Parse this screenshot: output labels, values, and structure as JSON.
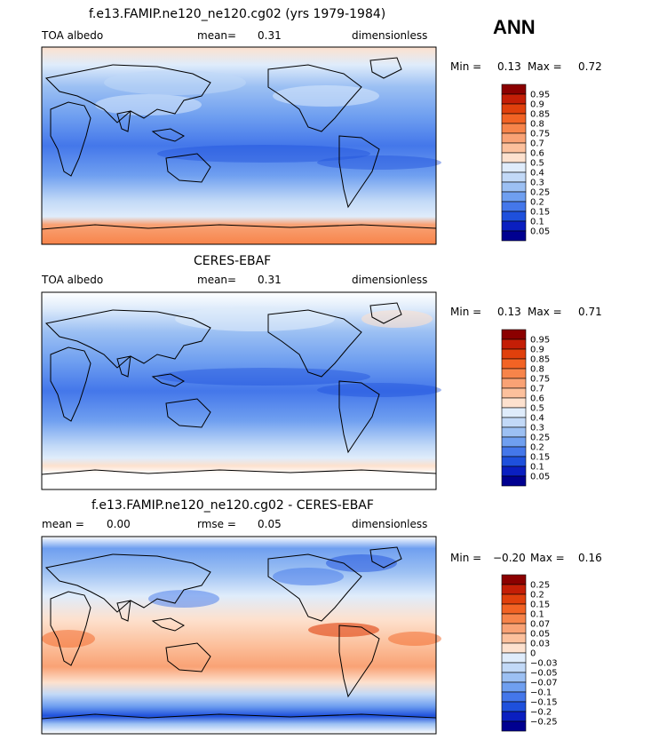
{
  "season": "ANN",
  "panels": [
    {
      "title": "f.e13.FAMIP.ne120_ne120.cg02 (yrs 1979-1984)",
      "left_label": "TOA albedo",
      "mean_label": "mean=",
      "mean_value": "0.31",
      "units": "dimensionless",
      "min_label": "Min =",
      "min_value": "0.13",
      "max_label": "Max =",
      "max_value": "0.72"
    },
    {
      "title": "CERES-EBAF",
      "left_label": "TOA albedo",
      "mean_label": "mean=",
      "mean_value": "0.31",
      "units": "dimensionless",
      "min_label": "Min =",
      "min_value": "0.13",
      "max_label": "Max =",
      "max_value": "0.71"
    },
    {
      "title": "f.e13.FAMIP.ne120_ne120.cg02 - CERES-EBAF",
      "left_label": "mean =",
      "left_value": "0.00",
      "mean_label": "rmse =",
      "mean_value": "0.05",
      "units": "dimensionless",
      "min_label": "Min =",
      "min_value": "−0.20",
      "max_label": "Max =",
      "max_value": "0.16"
    }
  ],
  "chart_data": [
    {
      "type": "heatmap",
      "title": "f.e13.FAMIP.ne120_ne120.cg02 (yrs 1979-1984)",
      "variable": "TOA albedo",
      "units": "dimensionless",
      "mean": 0.31,
      "min": 0.13,
      "max": 0.72,
      "colorbar_levels": [
        "0.95",
        "0.9",
        "0.85",
        "0.8",
        "0.75",
        "0.7",
        "0.6",
        "0.5",
        "0.4",
        "0.3",
        "0.25",
        "0.2",
        "0.15",
        "0.1",
        "0.05"
      ],
      "colorbar_colors": [
        "#8b0000",
        "#c41e06",
        "#e0400c",
        "#f26324",
        "#f7844a",
        "#f9a275",
        "#fcc09c",
        "#fde1ce",
        "#dfecfb",
        "#c2d9f7",
        "#9cc0f3",
        "#6f9ff0",
        "#4477ea",
        "#1e50dc",
        "#0a1fc0",
        "#000090"
      ]
    },
    {
      "type": "heatmap",
      "title": "CERES-EBAF",
      "variable": "TOA albedo",
      "units": "dimensionless",
      "mean": 0.31,
      "min": 0.13,
      "max": 0.71,
      "colorbar_levels": [
        "0.95",
        "0.9",
        "0.85",
        "0.8",
        "0.75",
        "0.7",
        "0.6",
        "0.5",
        "0.4",
        "0.3",
        "0.25",
        "0.2",
        "0.15",
        "0.1",
        "0.05"
      ],
      "colorbar_colors": [
        "#8b0000",
        "#c41e06",
        "#e0400c",
        "#f26324",
        "#f7844a",
        "#f9a275",
        "#fcc09c",
        "#fde1ce",
        "#dfecfb",
        "#c2d9f7",
        "#9cc0f3",
        "#6f9ff0",
        "#4477ea",
        "#1e50dc",
        "#0a1fc0",
        "#000090"
      ]
    },
    {
      "type": "heatmap",
      "title": "f.e13.FAMIP.ne120_ne120.cg02 - CERES-EBAF",
      "units": "dimensionless",
      "mean": 0.0,
      "rmse": 0.05,
      "min": -0.2,
      "max": 0.16,
      "colorbar_levels": [
        "0.25",
        "0.2",
        "0.15",
        "0.1",
        "0.07",
        "0.05",
        "0.03",
        "0",
        "−0.03",
        "−0.05",
        "−0.07",
        "−0.1",
        "−0.15",
        "−0.2",
        "−0.25"
      ],
      "colorbar_colors": [
        "#8b0000",
        "#c41e06",
        "#e0400c",
        "#f26324",
        "#f7844a",
        "#f9a275",
        "#fcc09c",
        "#fde1ce",
        "#dfecfb",
        "#c2d9f7",
        "#9cc0f3",
        "#6f9ff0",
        "#4477ea",
        "#1e50dc",
        "#0a1fc0",
        "#000090"
      ]
    }
  ]
}
